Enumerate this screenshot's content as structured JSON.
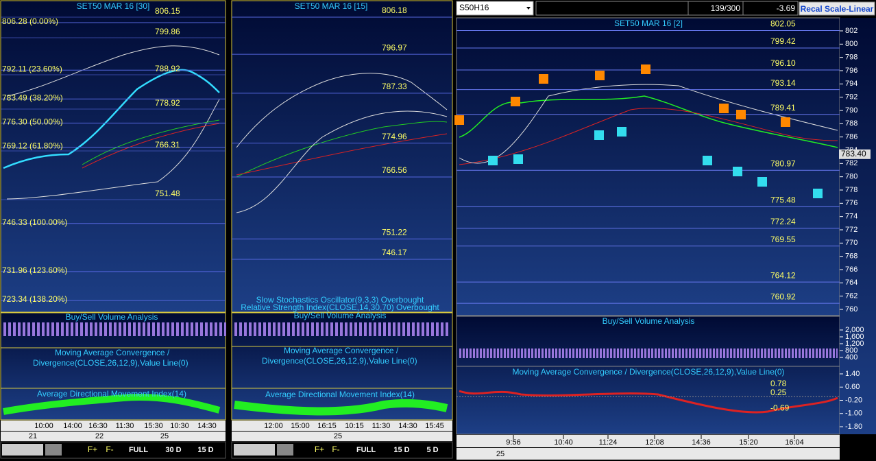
{
  "panel1": {
    "title": "SET50 MAR 16  [30]",
    "marker_labels": [
      "806.15",
      "799.86",
      "788.92",
      "778.92",
      "766.31",
      "751.48"
    ],
    "fib": [
      {
        "value": 806.28,
        "label": "806.28 (0.00%)"
      },
      {
        "value": 792.11,
        "label": "792.11 (23.60%)"
      },
      {
        "value": 783.49,
        "label": "783.49 (38.20%)"
      },
      {
        "value": 776.3,
        "label": "776.30 (50.00%)"
      },
      {
        "value": 769.12,
        "label": "769.12 (61.80%)"
      },
      {
        "value": 746.33,
        "label": "746.33 (100.00%)"
      },
      {
        "value": 731.96,
        "label": "731.96 (123.60%)"
      },
      {
        "value": 723.34,
        "label": "723.34 (138.20%)"
      }
    ],
    "indicators": [
      "Buy/Sell Volume Analysis",
      "Moving Average Convergence /",
      "Divergence(CLOSE,26,12,9),Value Line(0)",
      "Average Directional Movement Index(14)"
    ],
    "times": [
      "10:00",
      "14:00",
      "16:30",
      "11:30",
      "15:30",
      "10:30",
      "14:30"
    ],
    "dates": [
      "21",
      "22",
      "25"
    ],
    "toolbar": [
      "F+",
      "F-",
      "FULL",
      "30 D",
      "15 D"
    ]
  },
  "panel2": {
    "title": "SET50 MAR 16  [15]",
    "levels": [
      {
        "value": 806.18,
        "label": "806.18"
      },
      {
        "value": 796.97,
        "label": "796.97"
      },
      {
        "value": 787.33,
        "label": "787.33"
      },
      {
        "value": 774.96,
        "label": "774.96"
      },
      {
        "value": 766.56,
        "label": "766.56"
      },
      {
        "value": 751.22,
        "label": "751.22"
      },
      {
        "value": 746.17,
        "label": "746.17"
      }
    ],
    "indicators": [
      "Slow Stochastics Oscillator(9,3,3) Overbought",
      "Relative Strength Index(CLOSE,14,30,70) Overbought",
      "Buy/Sell Volume Analysis",
      "Moving Average Convergence /",
      "Divergence(CLOSE,26,12,9),Value Line(0)",
      "Average Directional Movement Index(14)"
    ],
    "times": [
      "12:00",
      "15:00",
      "16:15",
      "10:15",
      "11:30",
      "14:30",
      "15:45"
    ],
    "dates": [
      "25"
    ],
    "toolbar": [
      "F+",
      "F-",
      "FULL",
      "15 D",
      "5 D"
    ]
  },
  "panel3": {
    "symbol": "S50H16",
    "counter": "139/300",
    "change": "-3.69",
    "scale_button": "Recal Scale-Linear",
    "title": "SET50 MAR 16  [2]",
    "ylim": [
      760,
      802
    ],
    "yticks": [
      802,
      800,
      798,
      796,
      794,
      792,
      790,
      788,
      786,
      784,
      782,
      780,
      778,
      776,
      774,
      772,
      770,
      768,
      766,
      764,
      762,
      760
    ],
    "levels": [
      {
        "value": 802.05,
        "label": "802.05"
      },
      {
        "value": 799.42,
        "label": "799.42"
      },
      {
        "value": 796.1,
        "label": "796.10"
      },
      {
        "value": 793.14,
        "label": "793.14"
      },
      {
        "value": 789.41,
        "label": "789.41"
      },
      {
        "value": 780.97,
        "label": "780.97"
      },
      {
        "value": 775.48,
        "label": "775.48"
      },
      {
        "value": 772.24,
        "label": "772.24"
      },
      {
        "value": 769.55,
        "label": "769.55"
      },
      {
        "value": 764.12,
        "label": "764.12"
      },
      {
        "value": 760.92,
        "label": "760.92"
      }
    ],
    "last": {
      "value": 783.4,
      "label": "783.40"
    },
    "volume_title": "Buy/Sell Volume Analysis",
    "volume_ylim": [
      400,
      2000
    ],
    "volume_ticks": [
      {
        "value": 2000,
        "label": "2,000"
      },
      {
        "value": 1600,
        "label": "1,600"
      },
      {
        "value": 1200,
        "label": "1,200"
      },
      800,
      400
    ],
    "macd_title": "Moving Average Convergence / Divergence(CLOSE,26,12,9),Value Line(0)",
    "macd_ylim": [
      -1.8,
      1.4
    ],
    "macd_ticks": [
      {
        "value": 1.4,
        "label": "1.40"
      },
      {
        "value": 0.6,
        "label": "0.60"
      },
      {
        "value": -0.2,
        "label": "-0.20"
      },
      {
        "value": -1.0,
        "label": "-1.00"
      },
      {
        "value": -1.8,
        "label": "-1.80"
      }
    ],
    "macd_labels": [
      {
        "value": 0.78,
        "label": "0.78"
      },
      {
        "value": 0.25,
        "label": "0.25"
      },
      {
        "value": -0.69,
        "label": "-0.69"
      }
    ],
    "times": [
      "9:56",
      "10:40",
      "11:24",
      "12:08",
      "14:36",
      "15:20",
      "16:04"
    ],
    "dates": [
      "25"
    ]
  }
}
